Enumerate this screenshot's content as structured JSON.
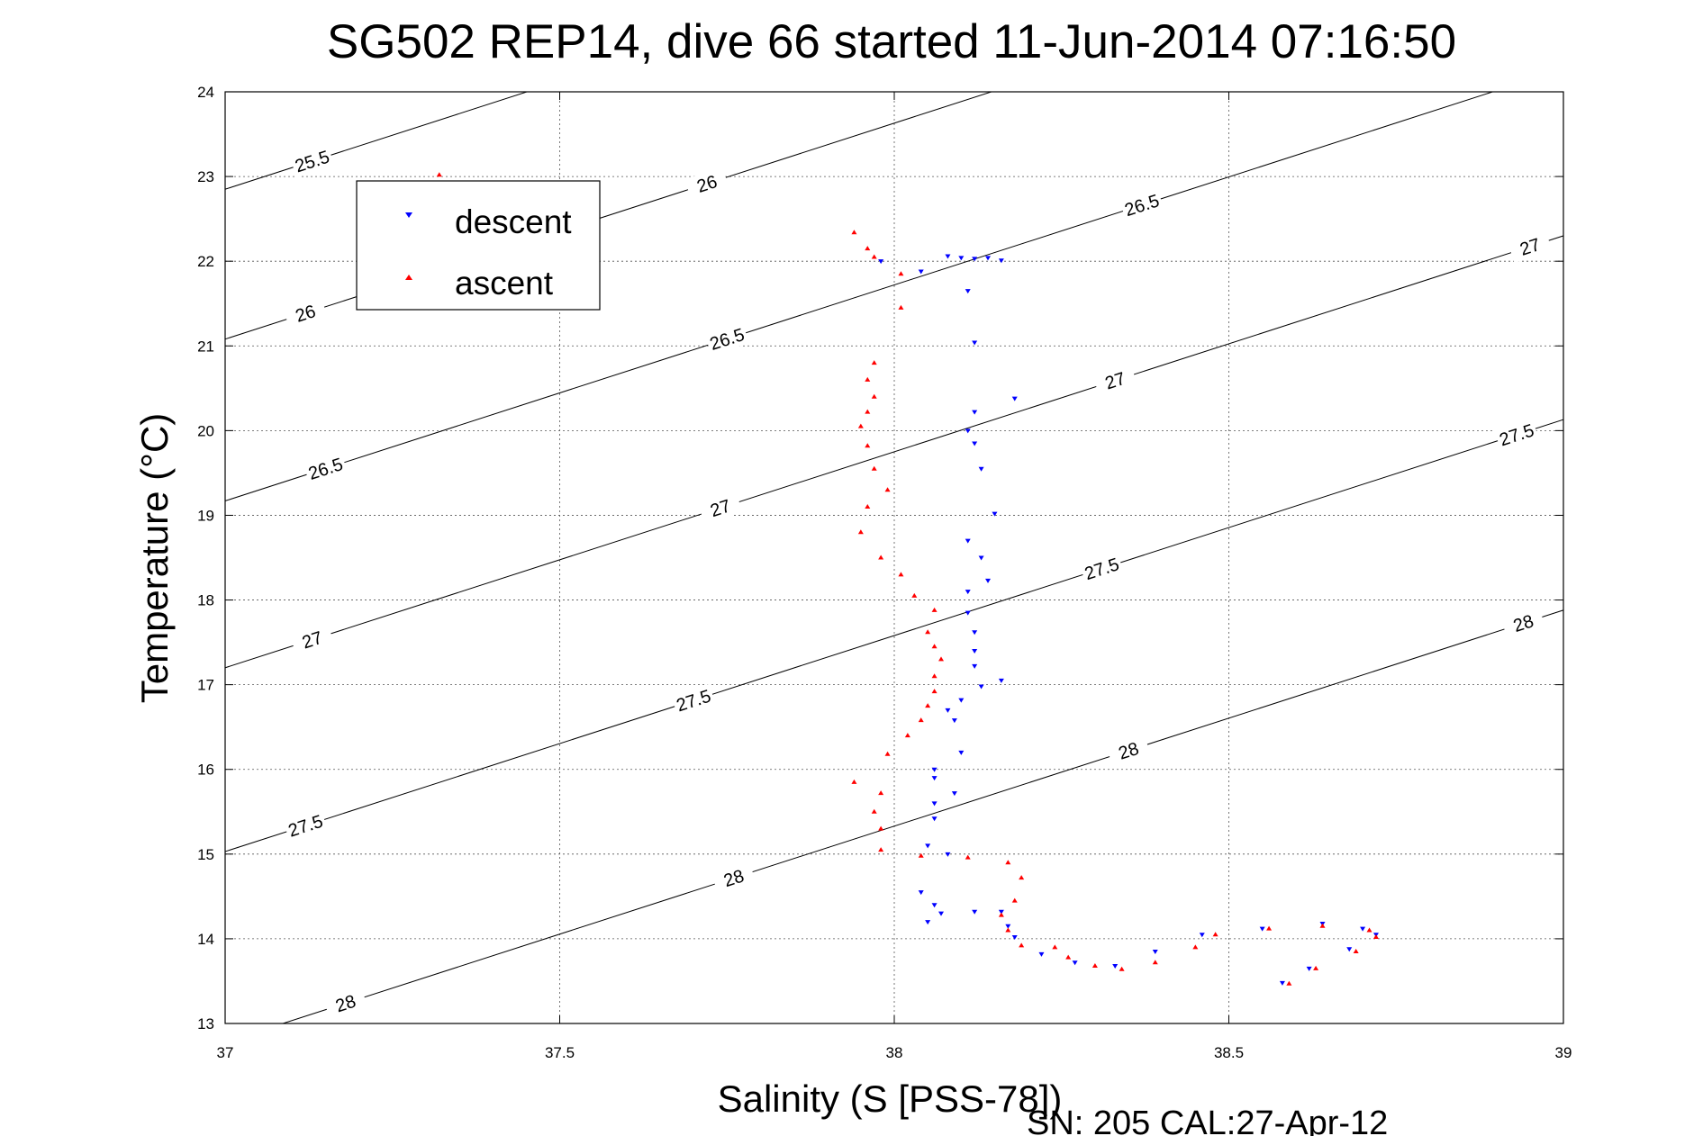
{
  "chart_data": {
    "type": "scatter",
    "title": "SG502 REP14, dive 66 started 11-Jun-2014 07:16:50",
    "xlabel": "Salinity (S [PSS-78])",
    "ylabel": "Temperature (°C)",
    "calibration_text": "SN: 205  CAL:27-Apr-12",
    "xlim": [
      37,
      39
    ],
    "ylim": [
      13,
      24
    ],
    "xticks": [
      "37",
      "37.5",
      "38",
      "38.5",
      "39"
    ],
    "yticks": [
      "13",
      "14",
      "15",
      "16",
      "17",
      "18",
      "19",
      "20",
      "21",
      "22",
      "23",
      "24"
    ],
    "grid": true,
    "legend_position": "top-left",
    "colors": {
      "descent": "#0000ff",
      "ascent": "#ff0000",
      "contour": "#000000"
    },
    "density_contours": [
      {
        "level": 25.5,
        "labels": [
          "25.5"
        ]
      },
      {
        "level": 26,
        "labels": [
          "26",
          "26"
        ]
      },
      {
        "level": 26.5,
        "labels": [
          "26.5",
          "26.5",
          "26.5"
        ]
      },
      {
        "level": 27,
        "labels": [
          "27",
          "27",
          "27",
          "27"
        ]
      },
      {
        "level": 27.5,
        "labels": [
          "27.5",
          "27.5",
          "27.5",
          "27.5"
        ]
      },
      {
        "level": 28,
        "labels": [
          "28",
          "28",
          "28",
          "28"
        ]
      }
    ],
    "series": [
      {
        "name": "descent",
        "marker": "triangle-down",
        "points": [
          [
            37.98,
            22.0
          ],
          [
            38.04,
            21.88
          ],
          [
            38.08,
            22.06
          ],
          [
            38.1,
            22.04
          ],
          [
            38.12,
            22.03
          ],
          [
            38.14,
            22.04
          ],
          [
            38.16,
            22.01
          ],
          [
            38.11,
            21.65
          ],
          [
            38.12,
            21.04
          ],
          [
            38.18,
            20.38
          ],
          [
            38.12,
            20.22
          ],
          [
            38.11,
            20.0
          ],
          [
            38.12,
            19.85
          ],
          [
            38.13,
            19.55
          ],
          [
            38.15,
            19.02
          ],
          [
            38.11,
            18.7
          ],
          [
            38.13,
            18.5
          ],
          [
            38.14,
            18.23
          ],
          [
            38.11,
            18.1
          ],
          [
            38.11,
            17.85
          ],
          [
            38.12,
            17.62
          ],
          [
            38.12,
            17.4
          ],
          [
            38.12,
            17.22
          ],
          [
            38.16,
            17.05
          ],
          [
            38.13,
            16.98
          ],
          [
            38.1,
            16.82
          ],
          [
            38.08,
            16.7
          ],
          [
            38.09,
            16.58
          ],
          [
            38.1,
            16.2
          ],
          [
            38.06,
            16.0
          ],
          [
            38.06,
            15.9
          ],
          [
            38.09,
            15.72
          ],
          [
            38.06,
            15.6
          ],
          [
            38.06,
            15.42
          ],
          [
            38.05,
            15.1
          ],
          [
            38.08,
            15.0
          ],
          [
            38.04,
            14.55
          ],
          [
            38.06,
            14.4
          ],
          [
            38.07,
            14.3
          ],
          [
            38.05,
            14.2
          ],
          [
            38.12,
            14.32
          ],
          [
            38.16,
            14.32
          ],
          [
            38.17,
            14.15
          ],
          [
            38.18,
            14.02
          ],
          [
            38.22,
            13.82
          ],
          [
            38.27,
            13.72
          ],
          [
            38.33,
            13.68
          ],
          [
            38.39,
            13.85
          ],
          [
            38.46,
            14.05
          ],
          [
            38.55,
            14.12
          ],
          [
            38.64,
            14.18
          ],
          [
            38.7,
            14.12
          ],
          [
            38.72,
            14.05
          ],
          [
            38.68,
            13.88
          ],
          [
            38.62,
            13.65
          ],
          [
            38.58,
            13.48
          ]
        ]
      },
      {
        "name": "ascent",
        "marker": "triangle-up",
        "points": [
          [
            37.32,
            23.02
          ],
          [
            37.94,
            22.34
          ],
          [
            37.96,
            22.15
          ],
          [
            37.97,
            22.05
          ],
          [
            38.01,
            21.85
          ],
          [
            38.01,
            21.45
          ],
          [
            37.97,
            20.8
          ],
          [
            37.96,
            20.6
          ],
          [
            37.97,
            20.4
          ],
          [
            37.96,
            20.22
          ],
          [
            37.95,
            20.05
          ],
          [
            37.96,
            19.82
          ],
          [
            37.97,
            19.55
          ],
          [
            37.99,
            19.3
          ],
          [
            37.96,
            19.1
          ],
          [
            37.95,
            18.8
          ],
          [
            37.98,
            18.5
          ],
          [
            38.01,
            18.3
          ],
          [
            38.03,
            18.05
          ],
          [
            38.06,
            17.88
          ],
          [
            38.05,
            17.62
          ],
          [
            38.06,
            17.45
          ],
          [
            38.07,
            17.3
          ],
          [
            38.06,
            17.1
          ],
          [
            38.06,
            16.92
          ],
          [
            38.05,
            16.75
          ],
          [
            38.04,
            16.58
          ],
          [
            38.02,
            16.4
          ],
          [
            37.99,
            16.18
          ],
          [
            37.94,
            15.85
          ],
          [
            37.98,
            15.72
          ],
          [
            37.97,
            15.5
          ],
          [
            37.98,
            15.3
          ],
          [
            37.98,
            15.05
          ],
          [
            38.04,
            14.98
          ],
          [
            38.11,
            14.96
          ],
          [
            38.17,
            14.9
          ],
          [
            38.19,
            14.72
          ],
          [
            38.18,
            14.45
          ],
          [
            38.16,
            14.28
          ],
          [
            38.17,
            14.1
          ],
          [
            38.19,
            13.92
          ],
          [
            38.24,
            13.9
          ],
          [
            38.26,
            13.78
          ],
          [
            38.3,
            13.68
          ],
          [
            38.34,
            13.64
          ],
          [
            38.39,
            13.72
          ],
          [
            38.45,
            13.9
          ],
          [
            38.48,
            14.05
          ],
          [
            38.56,
            14.12
          ],
          [
            38.64,
            14.15
          ],
          [
            38.71,
            14.1
          ],
          [
            38.72,
            14.02
          ],
          [
            38.69,
            13.85
          ],
          [
            38.63,
            13.65
          ],
          [
            38.59,
            13.47
          ]
        ]
      }
    ]
  }
}
